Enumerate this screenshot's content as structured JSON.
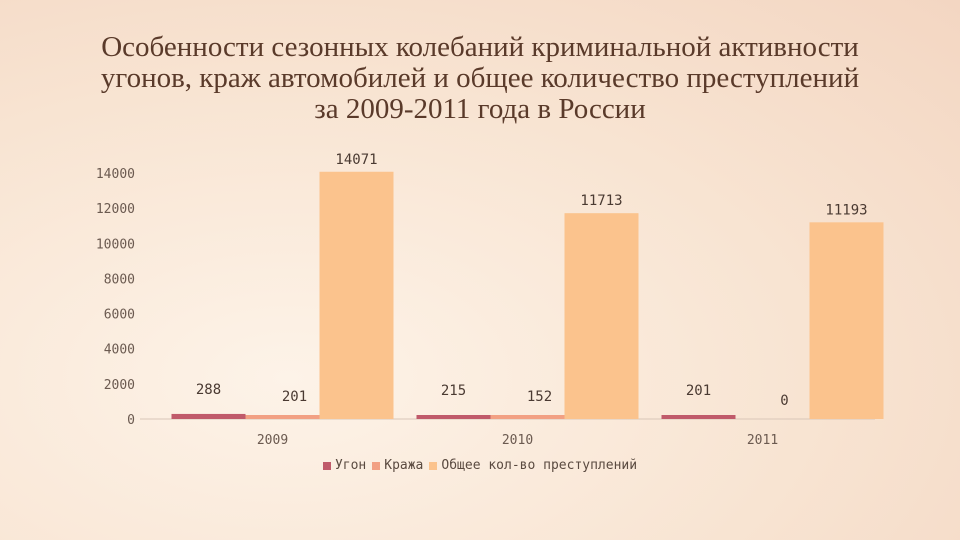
{
  "title_lines": [
    "Особенности сезонных колебаний криминальной активности",
    "угонов, краж автомобилей и общее количество преступлений",
    "за 2009-2011 года в России"
  ],
  "chart_data": {
    "type": "bar",
    "title": "Особенности сезонных колебаний криминальной активности угонов, краж автомобилей и общее количество преступлений за 2009-2011 года в России",
    "categories": [
      "2009",
      "2010",
      "2011"
    ],
    "series": [
      {
        "name": "Угон",
        "values": [
          288,
          215,
          201
        ],
        "color": "#c05a6a"
      },
      {
        "name": "Кража",
        "values": [
          201,
          152,
          0
        ],
        "color": "#f2a083"
      },
      {
        "name": "Общее кол-во преступлений",
        "values": [
          14071,
          11713,
          11193
        ],
        "color": "#fbc38d"
      }
    ],
    "ylim": [
      0,
      14000
    ],
    "yticks": [
      0,
      2000,
      4000,
      6000,
      8000,
      10000,
      12000,
      14000
    ],
    "grid": false,
    "legend_position": "bottom"
  }
}
